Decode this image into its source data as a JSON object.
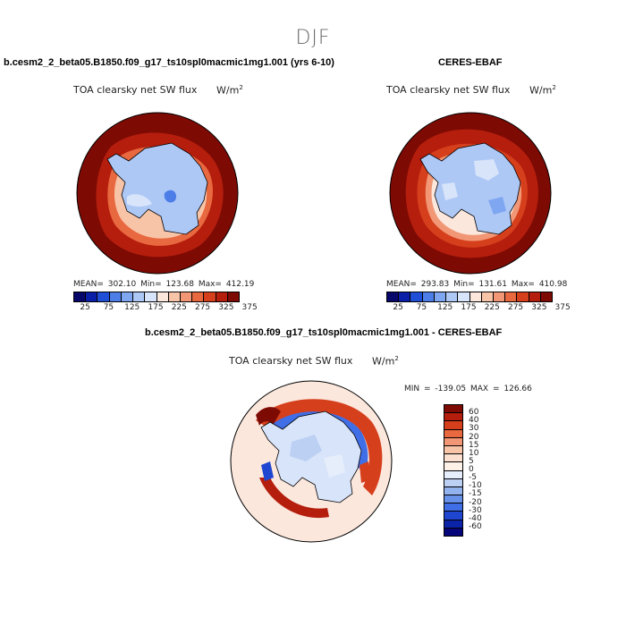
{
  "season": "DJF",
  "panels": {
    "model": {
      "case_title": "b.cesm2_2_beta05.B1850.f09_g17_ts10spl0macmic1mg1.001 (yrs 6-10)",
      "var_label": "TOA clearsky net SW flux",
      "units_base": "W/m",
      "units_exp": "2",
      "stats": "MEAN= 302.10  Min= 123.68  Max= 412.19"
    },
    "obs": {
      "case_title": "CERES-EBAF",
      "var_label": "TOA clearsky net SW flux",
      "units_base": "W/m",
      "units_exp": "2",
      "stats": "MEAN= 293.83  Min= 131.61  Max= 410.98"
    },
    "diff": {
      "case_title": "b.cesm2_2_beta05.B1850.f09_g17_ts10spl0macmic1mg1.001 - CERES-EBAF",
      "var_label": "TOA clearsky net SW flux",
      "units_base": "W/m",
      "units_exp": "2",
      "stats": "MIN = -139.05 MAX = 126.66"
    }
  },
  "abs_colorbar": {
    "colors": [
      "#08086b",
      "#0a1fa8",
      "#1f4fd6",
      "#4d7ee8",
      "#7fa6f0",
      "#aec8f6",
      "#d8e4fa",
      "#fbe7dc",
      "#f8c4a7",
      "#f29775",
      "#e8683f",
      "#d63f1c",
      "#b51e0d",
      "#7e0a04"
    ],
    "labels": [
      "25",
      "75",
      "125",
      "175",
      "225",
      "275",
      "325",
      "375"
    ]
  },
  "diff_colorbar": {
    "colors": [
      "#7e0a04",
      "#b51e0d",
      "#d63f1c",
      "#e8683f",
      "#f29775",
      "#f8c4a7",
      "#fbe0cf",
      "#fdf1e8",
      "#e6eefb",
      "#bcd0f4",
      "#93b3ef",
      "#6891ea",
      "#3f6ee6",
      "#1f46d0",
      "#0a23a8",
      "#06067a"
    ],
    "labels": [
      "60",
      "40",
      "30",
      "20",
      "15",
      "10",
      "5",
      "0",
      "-5",
      "-10",
      "-15",
      "-20",
      "-30",
      "-40",
      "-60"
    ]
  },
  "map_colors": {
    "ocean_warm": "#7e0a04",
    "ocean_mid": "#b51e0d",
    "ice_edge": "#e8683f",
    "sea_ice": "#f8c4a7",
    "continent": "#aec8f6",
    "continent_dark": "#7fa6f0",
    "diff_background": "#fbe7dc",
    "diff_blue": "#3f6ee6",
    "diff_red": "#d63f1c"
  }
}
